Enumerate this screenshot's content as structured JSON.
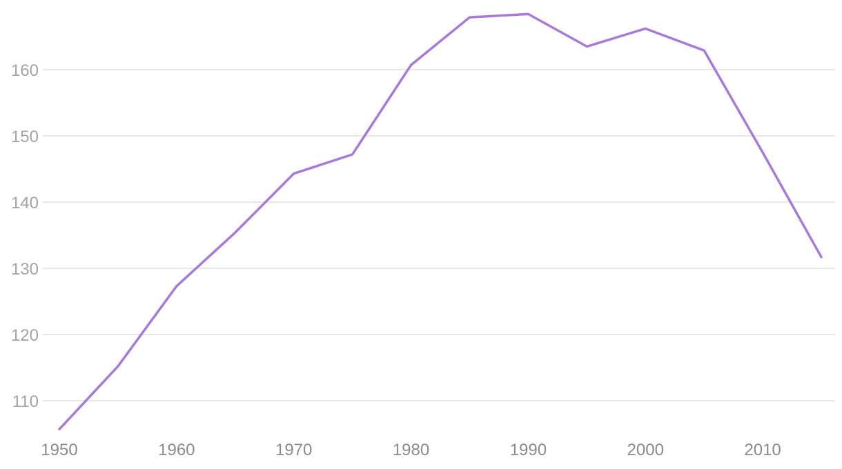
{
  "chart_data": {
    "type": "line",
    "title": "",
    "xlabel": "",
    "ylabel": "",
    "x": [
      1950,
      1955,
      1960,
      1965,
      1970,
      1975,
      1980,
      1985,
      1990,
      1995,
      2000,
      2005,
      2010,
      2015
    ],
    "series": [
      {
        "values": [
          105.7,
          115.2,
          127.3,
          135.4,
          144.3,
          147.2,
          160.7,
          167.9,
          168.4,
          163.5,
          166.2,
          162.9,
          147.5,
          131.7
        ],
        "color": "#a87ad8"
      }
    ],
    "xlim": [
      1950,
      2015
    ],
    "ylim": [
      105,
      170
    ],
    "xticks": [
      1950,
      1960,
      1970,
      1980,
      1990,
      2000,
      2010
    ],
    "yticks": [
      110,
      120,
      130,
      140,
      150,
      160
    ],
    "grid": "horizontal",
    "legend": "none"
  }
}
